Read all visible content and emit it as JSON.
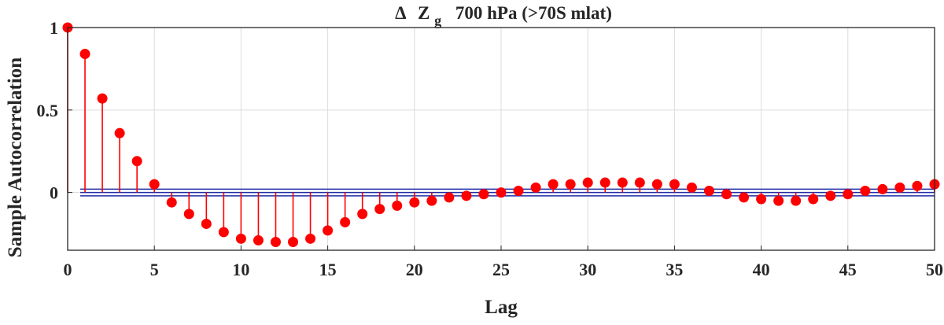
{
  "chart_data": {
    "type": "stem",
    "title": {
      "symbol": "Δ",
      "variable": "Z",
      "subscript": "g",
      "rest": "700 hPa (>70S mlat)"
    },
    "xlabel": "Lag",
    "ylabel": "Sample Autocorrelation",
    "xlim": [
      0,
      50
    ],
    "ylim": [
      -0.35,
      1.0
    ],
    "x_ticks": [
      "0",
      "5",
      "10",
      "15",
      "20",
      "25",
      "30",
      "35",
      "40",
      "45",
      "50"
    ],
    "y_ticks": [
      "0",
      "0.5",
      "1"
    ],
    "grid": true,
    "x": [
      0,
      1,
      2,
      3,
      4,
      5,
      6,
      7,
      8,
      9,
      10,
      11,
      12,
      13,
      14,
      15,
      16,
      17,
      18,
      19,
      20,
      21,
      22,
      23,
      24,
      25,
      26,
      27,
      28,
      29,
      30,
      31,
      32,
      33,
      34,
      35,
      36,
      37,
      38,
      39,
      40,
      41,
      42,
      43,
      44,
      45,
      46,
      47,
      48,
      49,
      50
    ],
    "values": [
      1.0,
      0.84,
      0.57,
      0.36,
      0.19,
      0.05,
      -0.06,
      -0.13,
      -0.19,
      -0.24,
      -0.28,
      -0.29,
      -0.3,
      -0.3,
      -0.28,
      -0.23,
      -0.18,
      -0.13,
      -0.1,
      -0.08,
      -0.06,
      -0.05,
      -0.03,
      -0.02,
      -0.01,
      0.0,
      0.01,
      0.03,
      0.05,
      0.05,
      0.06,
      0.06,
      0.06,
      0.06,
      0.05,
      0.05,
      0.03,
      0.01,
      -0.01,
      -0.03,
      -0.04,
      -0.05,
      -0.05,
      -0.04,
      -0.02,
      -0.01,
      0.01,
      0.02,
      0.03,
      0.04,
      0.05
    ],
    "confidence_bounds": [
      -0.02,
      0.02
    ],
    "colors": {
      "stem": "#ff0000",
      "marker": "#ff0000",
      "bounds": "#1f2ca8",
      "zero_line": "#1f2ca8",
      "axis": "#262626",
      "grid": "#dcdcdc"
    }
  }
}
